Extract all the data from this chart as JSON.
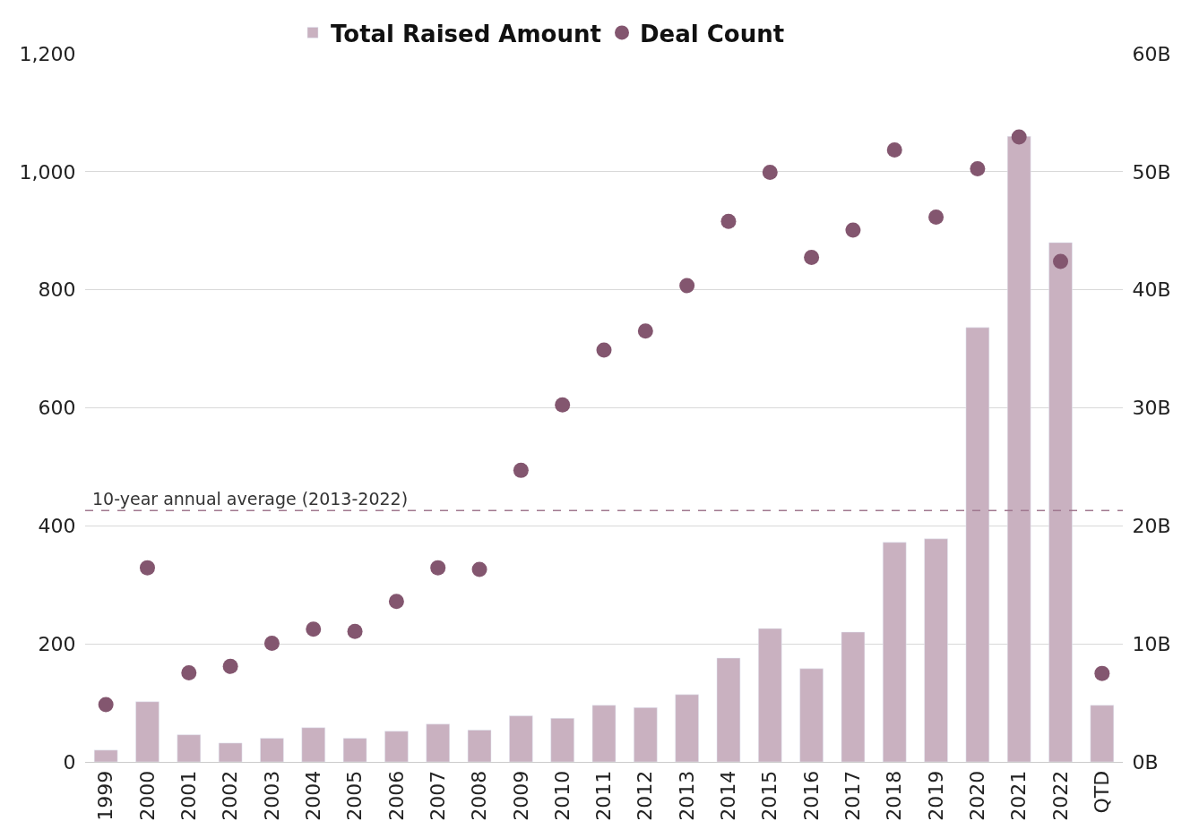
{
  "chart_data": {
    "type": "bar",
    "categories": [
      "1999",
      "2000",
      "2001",
      "2002",
      "2003",
      "2004",
      "2005",
      "2006",
      "2007",
      "2008",
      "2009",
      "2010",
      "2011",
      "2012",
      "2013",
      "2014",
      "2015",
      "2016",
      "2017",
      "2018",
      "2019",
      "2020",
      "2021",
      "2022",
      "QTD"
    ],
    "series": [
      {
        "name": "Total Raised Amount",
        "axis": "y2",
        "color": "#c9b1c0",
        "values": [
          1.0,
          5.1,
          2.3,
          1.6,
          2.0,
          2.9,
          2.0,
          2.6,
          3.2,
          2.7,
          3.9,
          3.7,
          4.8,
          4.6,
          5.7,
          8.8,
          11.3,
          7.9,
          11.0,
          18.6,
          18.9,
          36.8,
          53.0,
          44.0,
          4.8
        ]
      },
      {
        "name": "Deal Count",
        "type": "scatter",
        "axis": "y",
        "color": "#83566f",
        "marker": "circle",
        "values": [
          97,
          329,
          151,
          162,
          201,
          225,
          221,
          272,
          329,
          326,
          494,
          605,
          698,
          730,
          807,
          916,
          999,
          855,
          901,
          1037,
          923,
          1005,
          1059,
          848,
          150
        ]
      }
    ],
    "ylim": [
      0,
      1200
    ],
    "yticks": [
      0,
      200,
      400,
      600,
      800,
      {
        "value": 1000,
        "label": "1,000"
      },
      {
        "value": 1200,
        "label": "1,200"
      }
    ],
    "y2lim": [
      0,
      60
    ],
    "y2ticks": [
      {
        "value": 0,
        "label": "0B"
      },
      {
        "value": 10,
        "label": "10B"
      },
      {
        "value": 20,
        "label": "20B"
      },
      {
        "value": 30,
        "label": "30B"
      },
      {
        "value": 40,
        "label": "40B"
      },
      {
        "value": 50,
        "label": "50B"
      },
      {
        "value": 60,
        "label": "60B"
      }
    ],
    "ref_lines": [
      {
        "axis": "y2",
        "value": 21.3,
        "label": "10-year annual average (2013-2022)",
        "color": "#a0788f",
        "line_style": "dashed"
      }
    ],
    "grid": "y",
    "legend": "top"
  }
}
